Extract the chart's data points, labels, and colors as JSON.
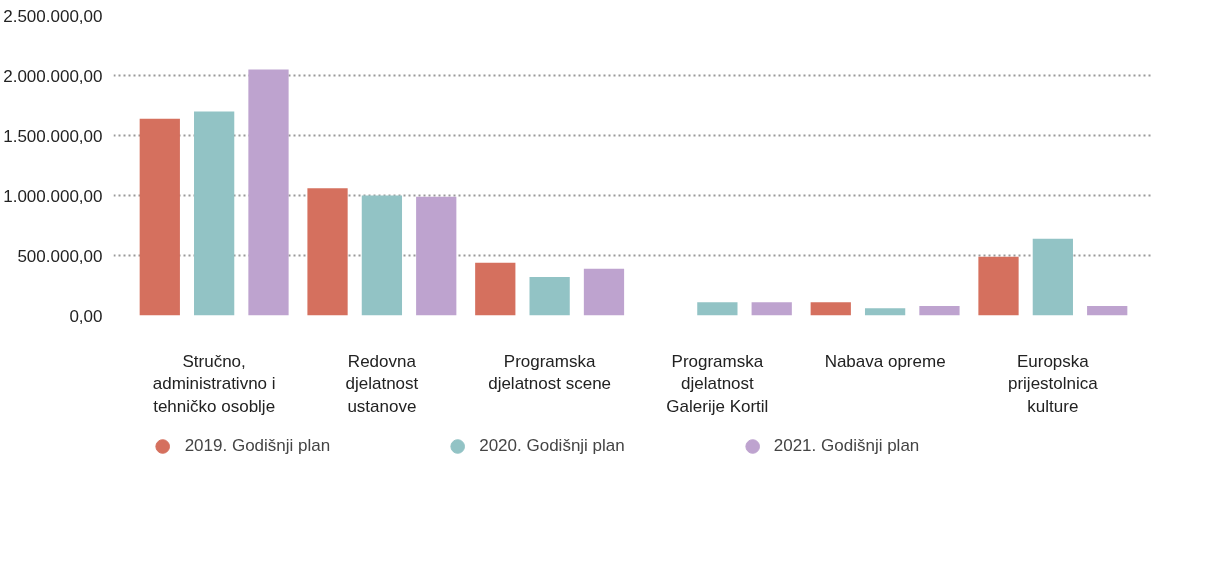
{
  "chart_data": {
    "type": "bar",
    "categories": [
      "Stručno, administrativno i tehničko osoblje",
      "Redovna djelatnost ustanove",
      "Programska djelatnost scene",
      "Programska djelatnost Galerije Kortil",
      "Nabava opreme",
      "Europska prijestolnica kulture"
    ],
    "series": [
      {
        "name": "2019. Godišnji plan",
        "color": "#d5705e",
        "values": [
          1640000,
          1060000,
          440000,
          0,
          110000,
          490000
        ]
      },
      {
        "name": "2020. Godišnji plan",
        "color": "#92c3c5",
        "values": [
          1700000,
          1000000,
          320000,
          110000,
          60000,
          640000
        ]
      },
      {
        "name": "2021. Godišnji plan",
        "color": "#bea3cf",
        "values": [
          2050000,
          990000,
          390000,
          110000,
          80000,
          80000
        ]
      }
    ],
    "ylim": [
      0,
      2500000
    ],
    "yticks": [
      {
        "value": 0,
        "label": "0,00"
      },
      {
        "value": 500000,
        "label": "500.000,00"
      },
      {
        "value": 1000000,
        "label": "1.000.000,00"
      },
      {
        "value": 1500000,
        "label": "1.500.000,00"
      },
      {
        "value": 2000000,
        "label": "2.000.000,00"
      },
      {
        "value": 2500000,
        "label": "2.500.000,00"
      }
    ],
    "grid": "y",
    "legend": "bottom"
  }
}
